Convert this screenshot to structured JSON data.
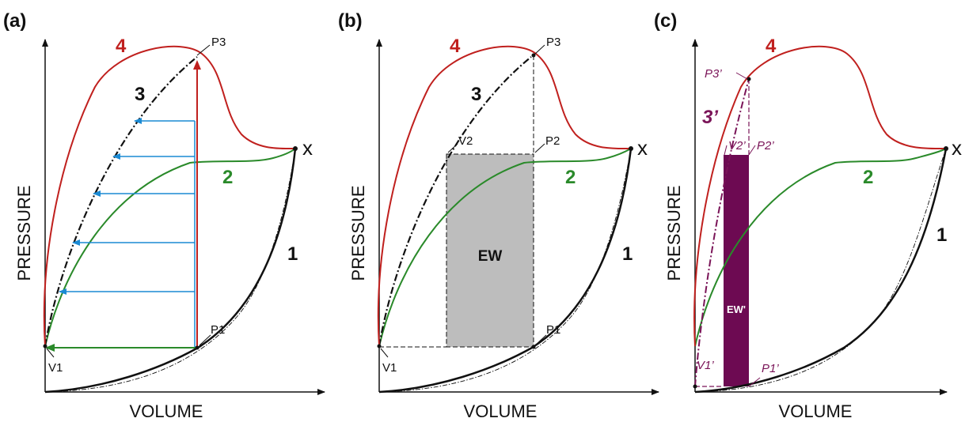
{
  "colors": {
    "curve1": "#111111",
    "curve2": "#2a8a2a",
    "curve3": "#111111",
    "curve4": "#c0201e",
    "arrow_blue": "#1a8ad4",
    "arrow_green": "#2a8a2a",
    "arrow_red": "#c0201e",
    "ew_fill": "#bdbdbd",
    "ew_prime_fill": "#6d0a52",
    "label_c": "#7a1458"
  },
  "panels": [
    {
      "label": "(a)",
      "xlabel": "VOLUME",
      "ylabel": "PRESSURE",
      "curve_labels": {
        "one": "1",
        "two": "2",
        "three": "3",
        "four": "4",
        "x": "x"
      },
      "points": {
        "p1": "P1",
        "p3": "P3",
        "v1": "V1"
      }
    },
    {
      "label": "(b)",
      "xlabel": "VOLUME",
      "ylabel": "PRESSURE",
      "curve_labels": {
        "one": "1",
        "two": "2",
        "three": "3",
        "four": "4",
        "x": "x"
      },
      "points": {
        "p1": "P1",
        "p2": "P2",
        "p3": "P3",
        "v1": "V1",
        "v2": "V2"
      },
      "area_label": "EW"
    },
    {
      "label": "(c)",
      "xlabel": "VOLUME",
      "ylabel": "PRESSURE",
      "curve_labels": {
        "one": "1",
        "two": "2",
        "three": "3’",
        "four": "4",
        "x": "x"
      },
      "points": {
        "p1": "P1’",
        "p2": "P2’",
        "p3": "P3’",
        "v1": "V1’",
        "v2": "V2’"
      },
      "area_label": "EW'"
    }
  ]
}
